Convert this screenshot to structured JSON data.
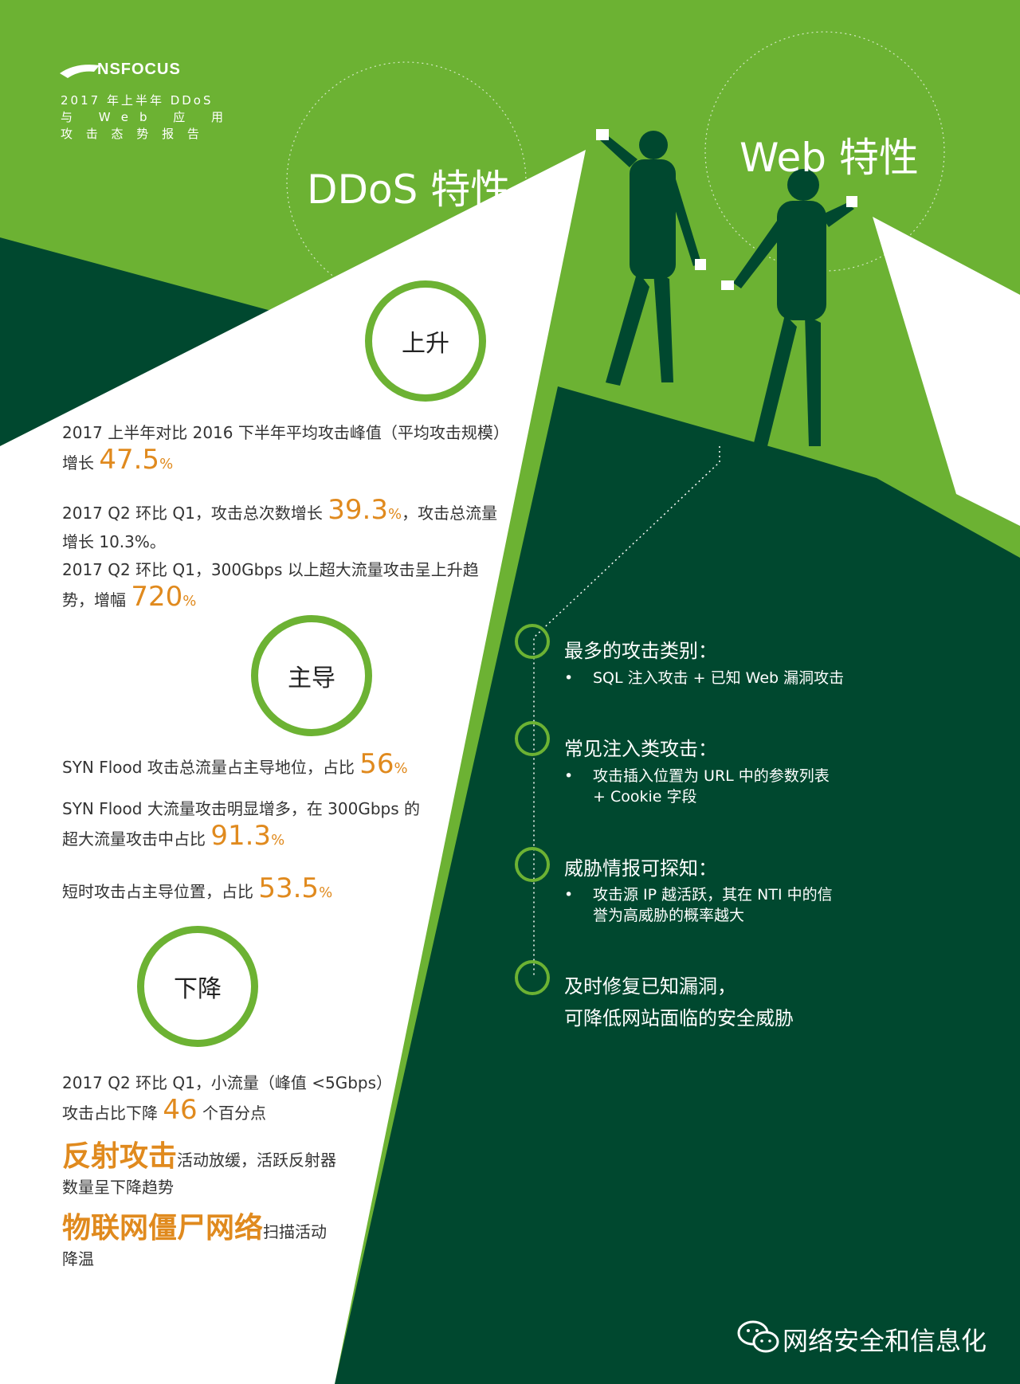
{
  "brand": {
    "logo_text": "NSFOCUS",
    "colors": {
      "green": "#6cb233",
      "dark_green": "#00482f",
      "orange": "#e08a1e",
      "white": "#ffffff"
    }
  },
  "report_title_lines": [
    "2017 年上半年 DDoS",
    "与 Web 应 用",
    "攻 击 态 势 报 告"
  ],
  "ddos": {
    "title": "DDoS 特性",
    "rise": {
      "label": "上升",
      "items": [
        {
          "pre": "2017 上半年对比 2016 下半年平均攻击峰值（平均攻击规模）",
          "pre2": "增长",
          "value": "47.5",
          "unit": "%"
        },
        {
          "pre": "2017 Q2 环比 Q1，攻击总次数增长",
          "value": "39.3",
          "unit": "%",
          "post": "，攻击总流量",
          "line2": "增长 10.3%。"
        },
        {
          "pre": "2017 Q2 环比 Q1，300Gbps 以上超大流量攻击呈上升趋",
          "pre2": "势，增幅",
          "value": "720",
          "unit": "%"
        }
      ]
    },
    "dominant": {
      "label": "主导",
      "items": [
        {
          "pre": "SYN Flood 攻击总流量占主导地位，占比",
          "value": "56",
          "unit": "%"
        },
        {
          "pre": "SYN Flood 大流量攻击明显增多，在 300Gbps 的",
          "pre2": "超大流量攻击中占比",
          "value": "91.3",
          "unit": "%"
        },
        {
          "pre": "短时攻击占主导位置，占比",
          "value": "53.5",
          "unit": "%"
        }
      ]
    },
    "decline": {
      "label": "下降",
      "items": [
        {
          "pre": "2017 Q2 环比 Q1，小流量（峰值 <5Gbps）",
          "pre2": "攻击占比下降",
          "value": "46",
          "post": "个百分点"
        }
      ],
      "reflect": {
        "title": "反射攻击",
        "text": "活动放缓，活跃反射器",
        "line2": "数量呈下降趋势"
      },
      "iot": {
        "title": "物联网僵尸网络",
        "text": "扫描活动",
        "line2": "降温"
      }
    }
  },
  "web": {
    "title": "Web 特性",
    "items": [
      {
        "title": "最多的攻击类别：",
        "bullet": "•",
        "lines": [
          "SQL 注入攻击 + 已知 Web 漏洞攻击"
        ]
      },
      {
        "title": "常见注入类攻击：",
        "bullet": "•",
        "lines": [
          "攻击插入位置为 URL 中的参数列表",
          "+ Cookie 字段"
        ]
      },
      {
        "title": "威胁情报可探知：",
        "bullet": "•",
        "lines": [
          "攻击源 IP 越活跃，其在 NTI 中的信",
          "誉为高威胁的概率越大"
        ]
      },
      {
        "title": "及时修复已知漏洞，",
        "title2": "可降低网站面临的安全威胁"
      }
    ]
  },
  "footer": {
    "wechat_label": "网络安全和信息化"
  }
}
